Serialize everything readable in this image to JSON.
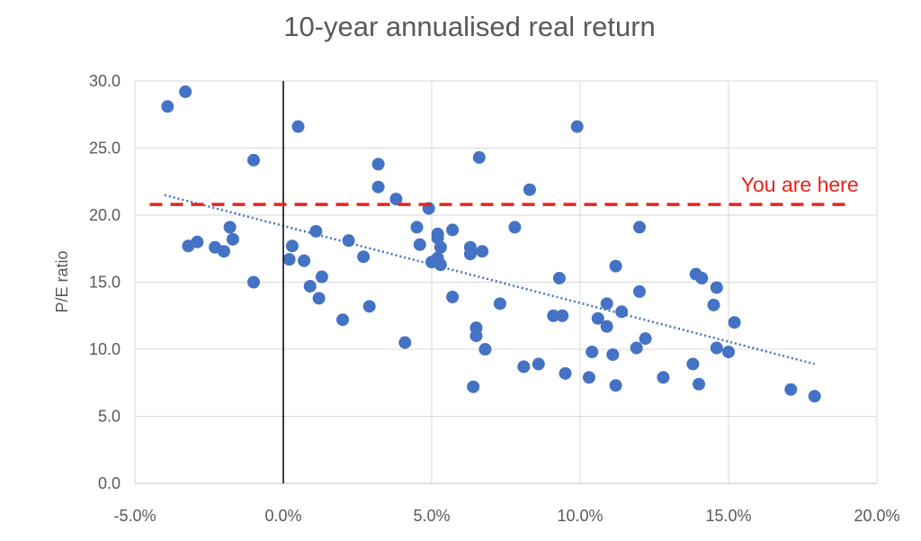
{
  "chart_data": {
    "type": "scatter",
    "title": "10-year annualised real return",
    "xlabel": "",
    "ylabel": "P/E ratio",
    "xlim": [
      -5,
      20
    ],
    "ylim": [
      0,
      30
    ],
    "x_ticks": [
      -5,
      0,
      5,
      10,
      15,
      20
    ],
    "x_tick_labels": [
      "-5.0%",
      "0.0%",
      "5.0%",
      "10.0%",
      "15.0%",
      "20.0%"
    ],
    "y_ticks": [
      0,
      5,
      10,
      15,
      20,
      25,
      30
    ],
    "y_tick_labels": [
      "0.0",
      "5.0",
      "10.0",
      "15.0",
      "20.0",
      "25.0",
      "30.0"
    ],
    "grid": true,
    "legend": "none",
    "marker_color": "#4472C4",
    "series": [
      {
        "points": [
          [
            -3.9,
            28.1
          ],
          [
            -3.3,
            29.2
          ],
          [
            -3.2,
            17.7
          ],
          [
            -2.9,
            18.0
          ],
          [
            -2.3,
            17.6
          ],
          [
            -2.0,
            17.3
          ],
          [
            -1.8,
            19.1
          ],
          [
            -1.7,
            18.2
          ],
          [
            -1.0,
            24.1
          ],
          [
            -1.0,
            15.0
          ],
          [
            0.2,
            16.7
          ],
          [
            0.3,
            17.7
          ],
          [
            0.5,
            26.6
          ],
          [
            0.7,
            16.6
          ],
          [
            0.9,
            14.7
          ],
          [
            1.1,
            18.8
          ],
          [
            1.2,
            13.8
          ],
          [
            1.3,
            15.4
          ],
          [
            2.0,
            12.2
          ],
          [
            2.2,
            18.1
          ],
          [
            2.7,
            16.9
          ],
          [
            2.9,
            13.2
          ],
          [
            3.2,
            22.1
          ],
          [
            3.2,
            23.8
          ],
          [
            3.8,
            21.2
          ],
          [
            4.1,
            10.5
          ],
          [
            4.5,
            19.1
          ],
          [
            4.6,
            17.8
          ],
          [
            4.9,
            20.5
          ],
          [
            5.0,
            16.5
          ],
          [
            5.2,
            16.8
          ],
          [
            5.2,
            18.6
          ],
          [
            5.2,
            18.3
          ],
          [
            5.3,
            17.6
          ],
          [
            5.3,
            16.3
          ],
          [
            5.7,
            18.9
          ],
          [
            5.7,
            13.9
          ],
          [
            6.3,
            17.1
          ],
          [
            6.3,
            17.6
          ],
          [
            6.4,
            7.2
          ],
          [
            6.5,
            11.0
          ],
          [
            6.5,
            11.6
          ],
          [
            6.6,
            24.3
          ],
          [
            6.7,
            17.3
          ],
          [
            6.8,
            10.0
          ],
          [
            7.3,
            13.4
          ],
          [
            7.8,
            19.1
          ],
          [
            8.1,
            8.7
          ],
          [
            8.3,
            21.9
          ],
          [
            8.6,
            8.9
          ],
          [
            9.1,
            12.5
          ],
          [
            9.3,
            15.3
          ],
          [
            9.4,
            12.5
          ],
          [
            9.5,
            8.2
          ],
          [
            9.9,
            26.6
          ],
          [
            10.3,
            7.9
          ],
          [
            10.4,
            9.8
          ],
          [
            10.6,
            12.3
          ],
          [
            10.9,
            11.7
          ],
          [
            10.9,
            13.4
          ],
          [
            11.1,
            9.6
          ],
          [
            11.2,
            16.2
          ],
          [
            11.2,
            7.3
          ],
          [
            11.4,
            12.8
          ],
          [
            11.9,
            10.1
          ],
          [
            12.0,
            19.1
          ],
          [
            12.0,
            14.3
          ],
          [
            12.2,
            10.8
          ],
          [
            12.8,
            7.9
          ],
          [
            13.8,
            8.9
          ],
          [
            13.9,
            15.6
          ],
          [
            14.0,
            7.4
          ],
          [
            14.1,
            15.3
          ],
          [
            14.5,
            13.3
          ],
          [
            14.6,
            14.6
          ],
          [
            14.6,
            10.1
          ],
          [
            15.0,
            9.8
          ],
          [
            15.2,
            12.0
          ],
          [
            17.1,
            7.0
          ],
          [
            17.9,
            6.5
          ]
        ]
      }
    ],
    "trendline": {
      "style": "dotted",
      "color": "#4472C4",
      "x_start": -4.0,
      "y_start": 21.5,
      "x_end": 17.9,
      "y_end": 8.9
    },
    "zero_line": {
      "x": 0,
      "color": "#000000"
    },
    "reference_line": {
      "y": 20.8,
      "x_start": -4.5,
      "x_end": 19.0,
      "color": "#E8231C",
      "style": "dashed",
      "label": "You are here"
    }
  }
}
